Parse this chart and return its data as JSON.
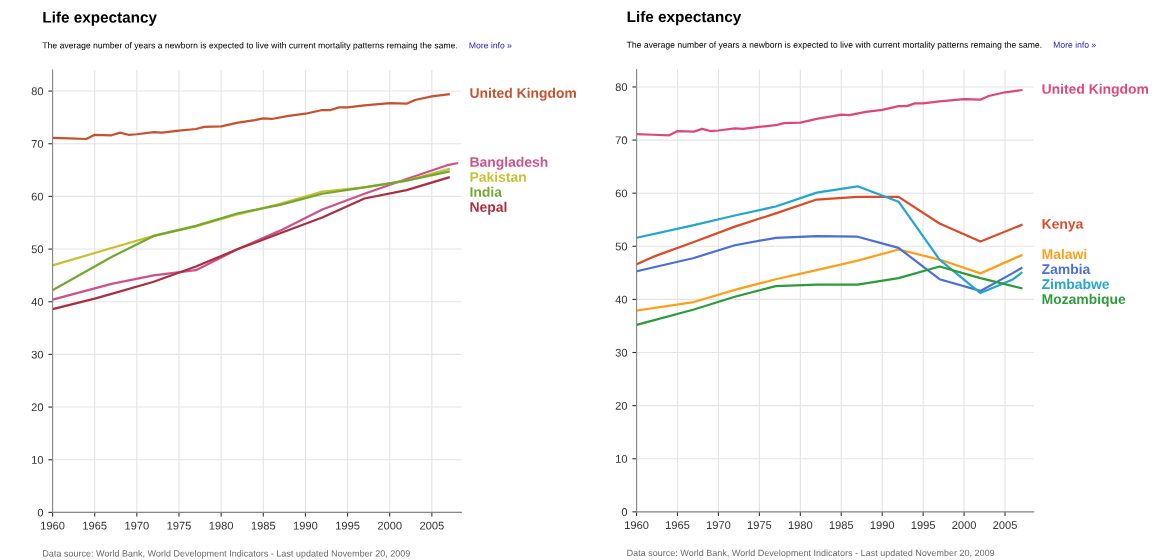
{
  "chart_data": [
    {
      "type": "line",
      "title": "Life expectancy",
      "subtitle": "The average number of years a newborn is expected to live with current mortality patterns remaing the same.",
      "annotations": [
        "More info »",
        "Data source: World Bank, World Development Indicators - Last updated November 20, 2009"
      ],
      "xlim": [
        1960,
        2008.5
      ],
      "xticks": [
        1960,
        1965,
        1970,
        1975,
        1980,
        1985,
        1990,
        1995,
        2000,
        2005
      ],
      "ylim": [
        0,
        84
      ],
      "yticks": [
        0,
        10,
        20,
        30,
        40,
        50,
        60,
        70,
        80
      ],
      "grid": true,
      "series": [
        {
          "name": "United Kingdom",
          "color": "#c8502c",
          "x": [
            1960,
            1962,
            1964,
            1965,
            1967,
            1968,
            1969,
            1970,
            1972,
            1973,
            1975,
            1977,
            1978,
            1980,
            1982,
            1984,
            1985,
            1986,
            1988,
            1990,
            1992,
            1993,
            1994,
            1995,
            1997,
            2000,
            2002,
            2003,
            2005,
            2007
          ],
          "values": [
            71.1,
            71.0,
            70.9,
            71.7,
            71.6,
            72.1,
            71.7,
            71.8,
            72.2,
            72.1,
            72.5,
            72.8,
            73.2,
            73.3,
            74.0,
            74.5,
            74.8,
            74.7,
            75.3,
            75.7,
            76.4,
            76.4,
            76.9,
            76.9,
            77.3,
            77.7,
            77.6,
            78.3,
            79.0,
            79.4
          ]
        },
        {
          "name": "Bangladesh",
          "color": "#d0508a",
          "x": [
            1960,
            1967,
            1972,
            1977,
            1982,
            1987,
            1992,
            1997,
            2002,
            2007,
            2008
          ],
          "values": [
            40.4,
            43.4,
            45.0,
            46.0,
            50.0,
            53.5,
            57.5,
            60.5,
            63.3,
            66.0,
            66.3
          ]
        },
        {
          "name": "Pakistan",
          "color": "#c8c030",
          "x": [
            1960,
            1967,
            1972,
            1977,
            1982,
            1987,
            1992,
            1997,
            2002,
            2007
          ],
          "values": [
            46.9,
            50.2,
            52.5,
            54.3,
            56.6,
            58.6,
            60.9,
            61.7,
            63.0,
            65.2
          ]
        },
        {
          "name": "India",
          "color": "#70a830",
          "x": [
            1960,
            1967,
            1972,
            1977,
            1982,
            1987,
            1992,
            1997,
            2002,
            2007
          ],
          "values": [
            42.2,
            48.5,
            52.5,
            54.4,
            56.8,
            58.4,
            60.5,
            61.7,
            63.0,
            64.7
          ]
        },
        {
          "name": "Nepal",
          "color": "#a83040",
          "x": [
            1960,
            1965,
            1967,
            1972,
            1977,
            1982,
            1987,
            1992,
            1997,
            2002,
            2007
          ],
          "values": [
            38.6,
            40.6,
            41.5,
            43.8,
            46.7,
            50.0,
            53.0,
            56.0,
            59.6,
            61.2,
            63.6
          ]
        }
      ]
    },
    {
      "type": "line",
      "title": "Life expectancy",
      "subtitle": "The average number of years a newborn is expected to live with current mortality patterns remaing the same.",
      "annotations": [
        "More info »",
        "Data source: World Bank, World Development Indicators - Last updated November 20, 2009"
      ],
      "xlim": [
        1960,
        2008.5
      ],
      "xticks": [
        1960,
        1965,
        1970,
        1975,
        1980,
        1985,
        1990,
        1995,
        2000,
        2005
      ],
      "ylim": [
        0,
        83.3
      ],
      "yticks": [
        0,
        10,
        20,
        30,
        40,
        50,
        60,
        70,
        80
      ],
      "grid": true,
      "series": [
        {
          "name": "United Kingdom",
          "color": "#e0457b",
          "x": [
            1960,
            1962,
            1964,
            1965,
            1967,
            1968,
            1969,
            1970,
            1972,
            1973,
            1975,
            1977,
            1978,
            1980,
            1982,
            1984,
            1985,
            1986,
            1988,
            1990,
            1992,
            1993,
            1994,
            1995,
            1997,
            2000,
            2002,
            2003,
            2005,
            2007
          ],
          "values": [
            71.1,
            71.0,
            70.9,
            71.7,
            71.6,
            72.1,
            71.7,
            71.8,
            72.2,
            72.1,
            72.5,
            72.8,
            73.2,
            73.3,
            74.0,
            74.5,
            74.8,
            74.7,
            75.3,
            75.7,
            76.4,
            76.4,
            76.9,
            76.9,
            77.3,
            77.7,
            77.6,
            78.3,
            79.0,
            79.4
          ]
        },
        {
          "name": "Kenya",
          "color": "#dc4b28",
          "x": [
            1960,
            1962,
            1967,
            1972,
            1977,
            1982,
            1987,
            1992,
            1997,
            2002,
            2007
          ],
          "values": [
            46.6,
            48.0,
            50.8,
            53.7,
            56.2,
            58.8,
            59.3,
            59.3,
            54.3,
            50.9,
            54.0
          ]
        },
        {
          "name": "Malawi",
          "color": "#ff9e18",
          "x": [
            1960,
            1967,
            1972,
            1977,
            1982,
            1987,
            1992,
            1997,
            2002,
            2007
          ],
          "values": [
            37.9,
            39.5,
            41.8,
            43.8,
            45.5,
            47.3,
            49.4,
            47.5,
            44.9,
            48.3
          ]
        },
        {
          "name": "Zambia",
          "color": "#4a6fd8",
          "x": [
            1960,
            1967,
            1972,
            1977,
            1982,
            1987,
            1992,
            1997,
            2002,
            2006,
            2007
          ],
          "values": [
            45.3,
            47.8,
            50.2,
            51.6,
            51.9,
            51.8,
            49.7,
            43.8,
            41.6,
            45.0,
            45.9
          ]
        },
        {
          "name": "Zimbabwe",
          "color": "#22a6d0",
          "x": [
            1960,
            1967,
            1972,
            1977,
            1982,
            1987,
            1992,
            1997,
            2002,
            2006,
            2007
          ],
          "values": [
            51.6,
            54.0,
            55.8,
            57.5,
            60.1,
            61.3,
            58.4,
            47.5,
            41.2,
            43.8,
            45.0
          ]
        },
        {
          "name": "Mozambique",
          "color": "#2a9c3a",
          "x": [
            1960,
            1967,
            1972,
            1977,
            1982,
            1987,
            1992,
            1997,
            2002,
            2007
          ],
          "values": [
            35.2,
            38.1,
            40.5,
            42.5,
            42.8,
            42.8,
            44.0,
            46.2,
            44.0,
            42.1
          ]
        }
      ]
    }
  ]
}
